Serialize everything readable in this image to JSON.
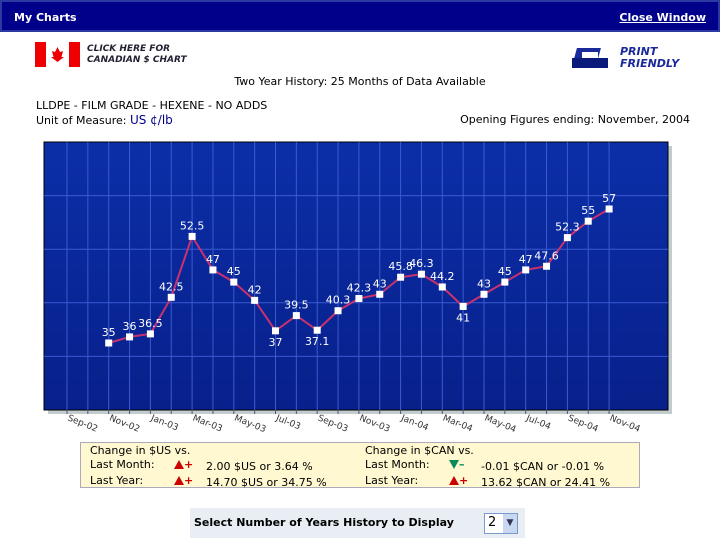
{
  "header": {
    "title": "My Charts",
    "close": "Close Window"
  },
  "canada_link": [
    "CLICK HERE FOR",
    "CANADIAN $ CHART"
  ],
  "print_link": [
    "PRINT",
    "FRIENDLY"
  ],
  "history": "Two Year History: 25 Months of Data Available",
  "product": "LLDPE - FILM GRADE - HEXENE - NO ADDS",
  "unit_label": "Unit of Measure:",
  "unit": "US ¢/lb",
  "opening_label": "Opening Figures",
  "ending_label": "ending:",
  "ending": "November, 2004",
  "chart_data": {
    "type": "line",
    "color": "#c8326e",
    "grid": true,
    "categories": [
      "Sep-02",
      null,
      "Nov-02",
      null,
      "Jan-03",
      null,
      "Mar-03",
      null,
      "May-03",
      null,
      "Jul-03",
      null,
      "Sep-03",
      null,
      "Nov-03",
      null,
      "Jan-04",
      null,
      "Mar-04",
      null,
      "May-04",
      null,
      "Jul-04",
      null,
      "Sep-04",
      null,
      "Nov-04"
    ],
    "values": [
      null,
      null,
      35,
      36,
      36.5,
      42.5,
      52.5,
      47,
      45,
      42,
      37,
      39.5,
      37.1,
      40.3,
      42.3,
      43,
      45.8,
      46.3,
      44.2,
      41,
      43,
      45,
      47,
      47.6,
      52.3,
      55,
      57
    ],
    "ylim": [
      24,
      68
    ]
  },
  "changes": [
    {
      "title": "Change in $US vs.",
      "rows": [
        {
          "label": "Last Month:",
          "sign": "+",
          "text": "2.00 $US or 3.64 %"
        },
        {
          "label": "Last Year:",
          "sign": "+",
          "text": "14.70 $US or 34.75 %"
        }
      ]
    },
    {
      "title": "Change in $CAN vs.",
      "rows": [
        {
          "label": "Last Month:",
          "sign": "–",
          "text": "-0.01 $CAN or -0.01 %"
        },
        {
          "label": "Last Year:",
          "sign": "+",
          "text": "13.62 $CAN or 24.41 %"
        }
      ]
    }
  ],
  "selector": {
    "label": "Select Number of Years History to Display",
    "value": "2"
  }
}
